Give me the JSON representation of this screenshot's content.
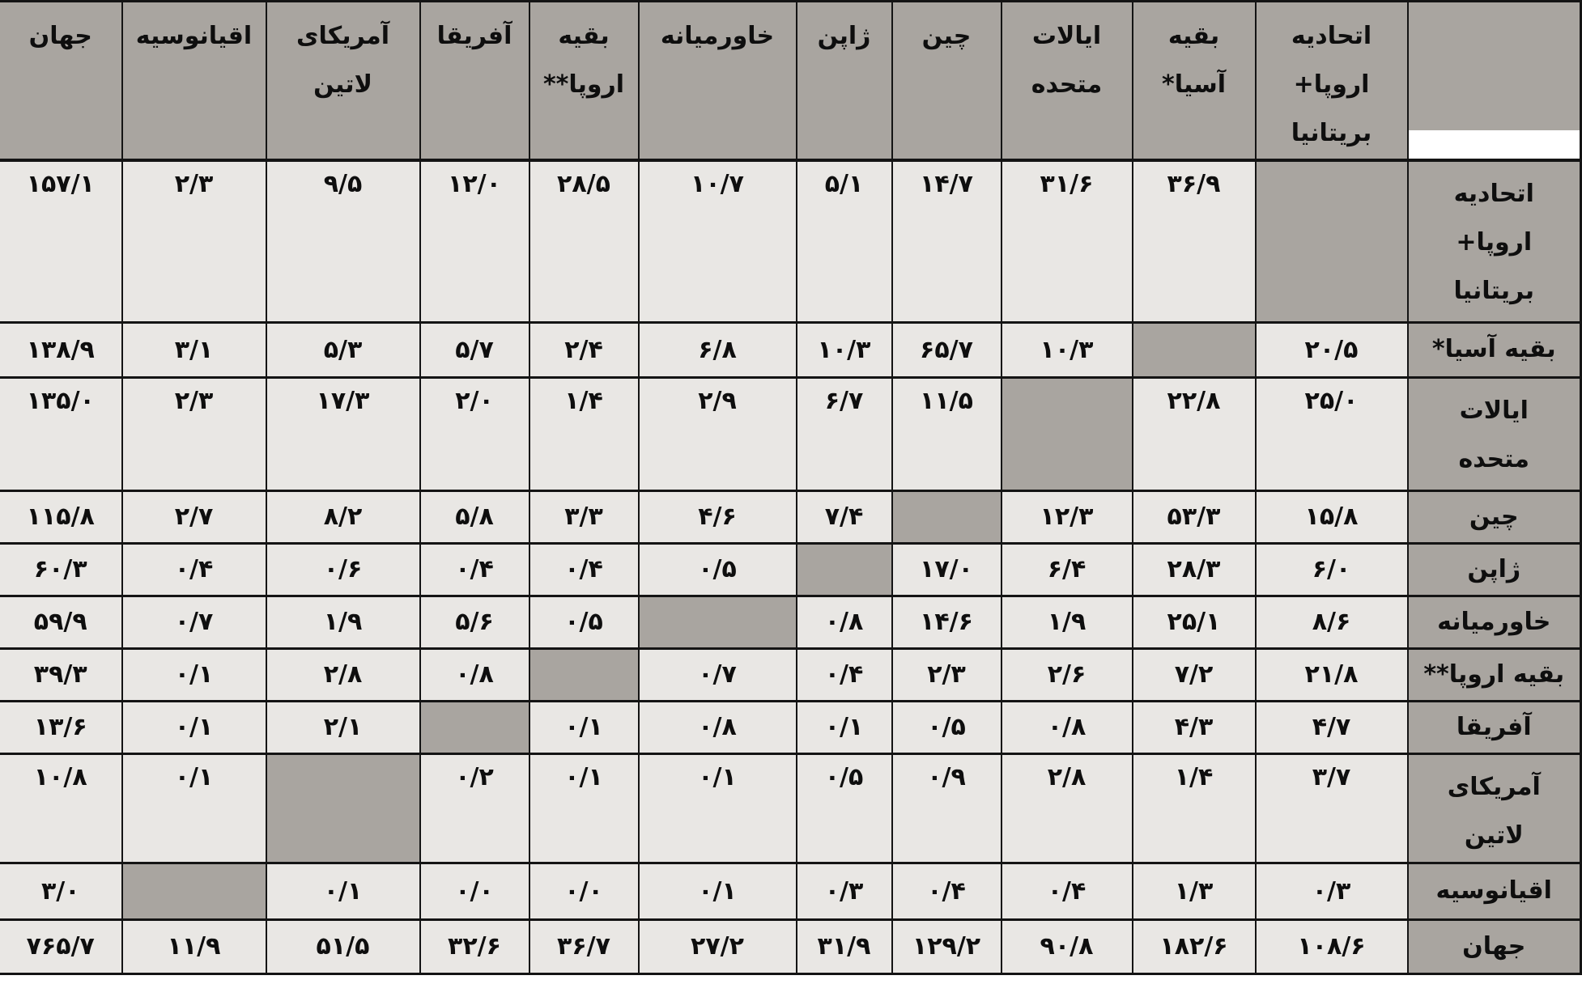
{
  "table": {
    "corner_label": "",
    "columns": [
      {
        "id": "eu-uk",
        "label": "اتحادیه\nاروپا+\nبریتانیا"
      },
      {
        "id": "rest-asia",
        "label": "بقیه\nآسیا*"
      },
      {
        "id": "us",
        "label": "ایالات\nمتحده"
      },
      {
        "id": "china",
        "label": "چین"
      },
      {
        "id": "japan",
        "label": "ژاپن"
      },
      {
        "id": "middle-east",
        "label": "خاورمیانه"
      },
      {
        "id": "rest-europe",
        "label": "بقیه\nاروپا**"
      },
      {
        "id": "africa",
        "label": "آفریقا"
      },
      {
        "id": "latin-america",
        "label": "آمریکای\nلاتین"
      },
      {
        "id": "oceania",
        "label": "اقیانوسیه"
      },
      {
        "id": "world",
        "label": "جهان"
      }
    ],
    "rows": [
      {
        "id": "eu-uk",
        "label": "اتحادیه\nاروپا+\nبریتانیا",
        "values": [
          null,
          "۳۶/۹",
          "۳۱/۶",
          "۱۴/۷",
          "۵/۱",
          "۱۰/۷",
          "۲۸/۵",
          "۱۲/۰",
          "۹/۵",
          "۲/۳",
          "۱۵۷/۱"
        ]
      },
      {
        "id": "rest-asia",
        "label": "بقیه آسیا*",
        "values": [
          "۲۰/۵",
          null,
          "۱۰/۳",
          "۶۵/۷",
          "۱۰/۳",
          "۶/۸",
          "۲/۴",
          "۵/۷",
          "۵/۳",
          "۳/۱",
          "۱۳۸/۹"
        ]
      },
      {
        "id": "us",
        "label": "ایالات\nمتحده",
        "values": [
          "۲۵/۰",
          "۲۲/۸",
          null,
          "۱۱/۵",
          "۶/۷",
          "۲/۹",
          "۱/۴",
          "۲/۰",
          "۱۷/۳",
          "۲/۳",
          "۱۳۵/۰"
        ]
      },
      {
        "id": "china",
        "label": "چین",
        "values": [
          "۱۵/۸",
          "۵۳/۳",
          "۱۲/۳",
          null,
          "۷/۴",
          "۴/۶",
          "۳/۳",
          "۵/۸",
          "۸/۲",
          "۲/۷",
          "۱۱۵/۸"
        ]
      },
      {
        "id": "japan",
        "label": "ژاپن",
        "values": [
          "۶/۰",
          "۲۸/۳",
          "۶/۴",
          "۱۷/۰",
          null,
          "۰/۵",
          "۰/۴",
          "۰/۴",
          "۰/۶",
          "۰/۴",
          "۶۰/۳"
        ]
      },
      {
        "id": "middle-east",
        "label": "خاورمیانه",
        "values": [
          "۸/۶",
          "۲۵/۱",
          "۱/۹",
          "۱۴/۶",
          "۰/۸",
          null,
          "۰/۵",
          "۵/۶",
          "۱/۹",
          "۰/۷",
          "۵۹/۹"
        ]
      },
      {
        "id": "rest-europe",
        "label": "بقیه اروپا**",
        "values": [
          "۲۱/۸",
          "۷/۲",
          "۲/۶",
          "۲/۳",
          "۰/۴",
          "۰/۷",
          null,
          "۰/۸",
          "۲/۸",
          "۰/۱",
          "۳۹/۳"
        ]
      },
      {
        "id": "africa",
        "label": "آفریقا",
        "values": [
          "۴/۷",
          "۴/۳",
          "۰/۸",
          "۰/۵",
          "۰/۱",
          "۰/۸",
          "۰/۱",
          null,
          "۲/۱",
          "۰/۱",
          "۱۳/۶"
        ]
      },
      {
        "id": "latin-america",
        "label": "آمریکای\nلاتین",
        "values": [
          "۳/۷",
          "۱/۴",
          "۲/۸",
          "۰/۹",
          "۰/۵",
          "۰/۱",
          "۰/۱",
          "۰/۲",
          null,
          "۰/۱",
          "۱۰/۸"
        ]
      },
      {
        "id": "oceania",
        "label": "اقیانوسیه",
        "values": [
          "۰/۳",
          "۱/۳",
          "۰/۴",
          "۰/۴",
          "۰/۳",
          "۰/۱",
          "۰/۰",
          "۰/۰",
          "۰/۱",
          null,
          "۳/۰"
        ]
      },
      {
        "id": "world",
        "label": "جهان",
        "values": [
          "۱۰۸/۶",
          "۱۸۲/۶",
          "۹۰/۸",
          "۱۲۹/۲",
          "۳۱/۹",
          "۲۷/۲",
          "۳۶/۷",
          "۳۲/۶",
          "۵۱/۵",
          "۱۱/۹",
          "۷۶۵/۷"
        ]
      }
    ],
    "colors": {
      "header_bg": "#a9a5a0",
      "cell_bg": "#e9e7e4",
      "diagonal_bg": "#a9a5a0",
      "border": "#141414",
      "text": "#0e0e0e"
    }
  }
}
